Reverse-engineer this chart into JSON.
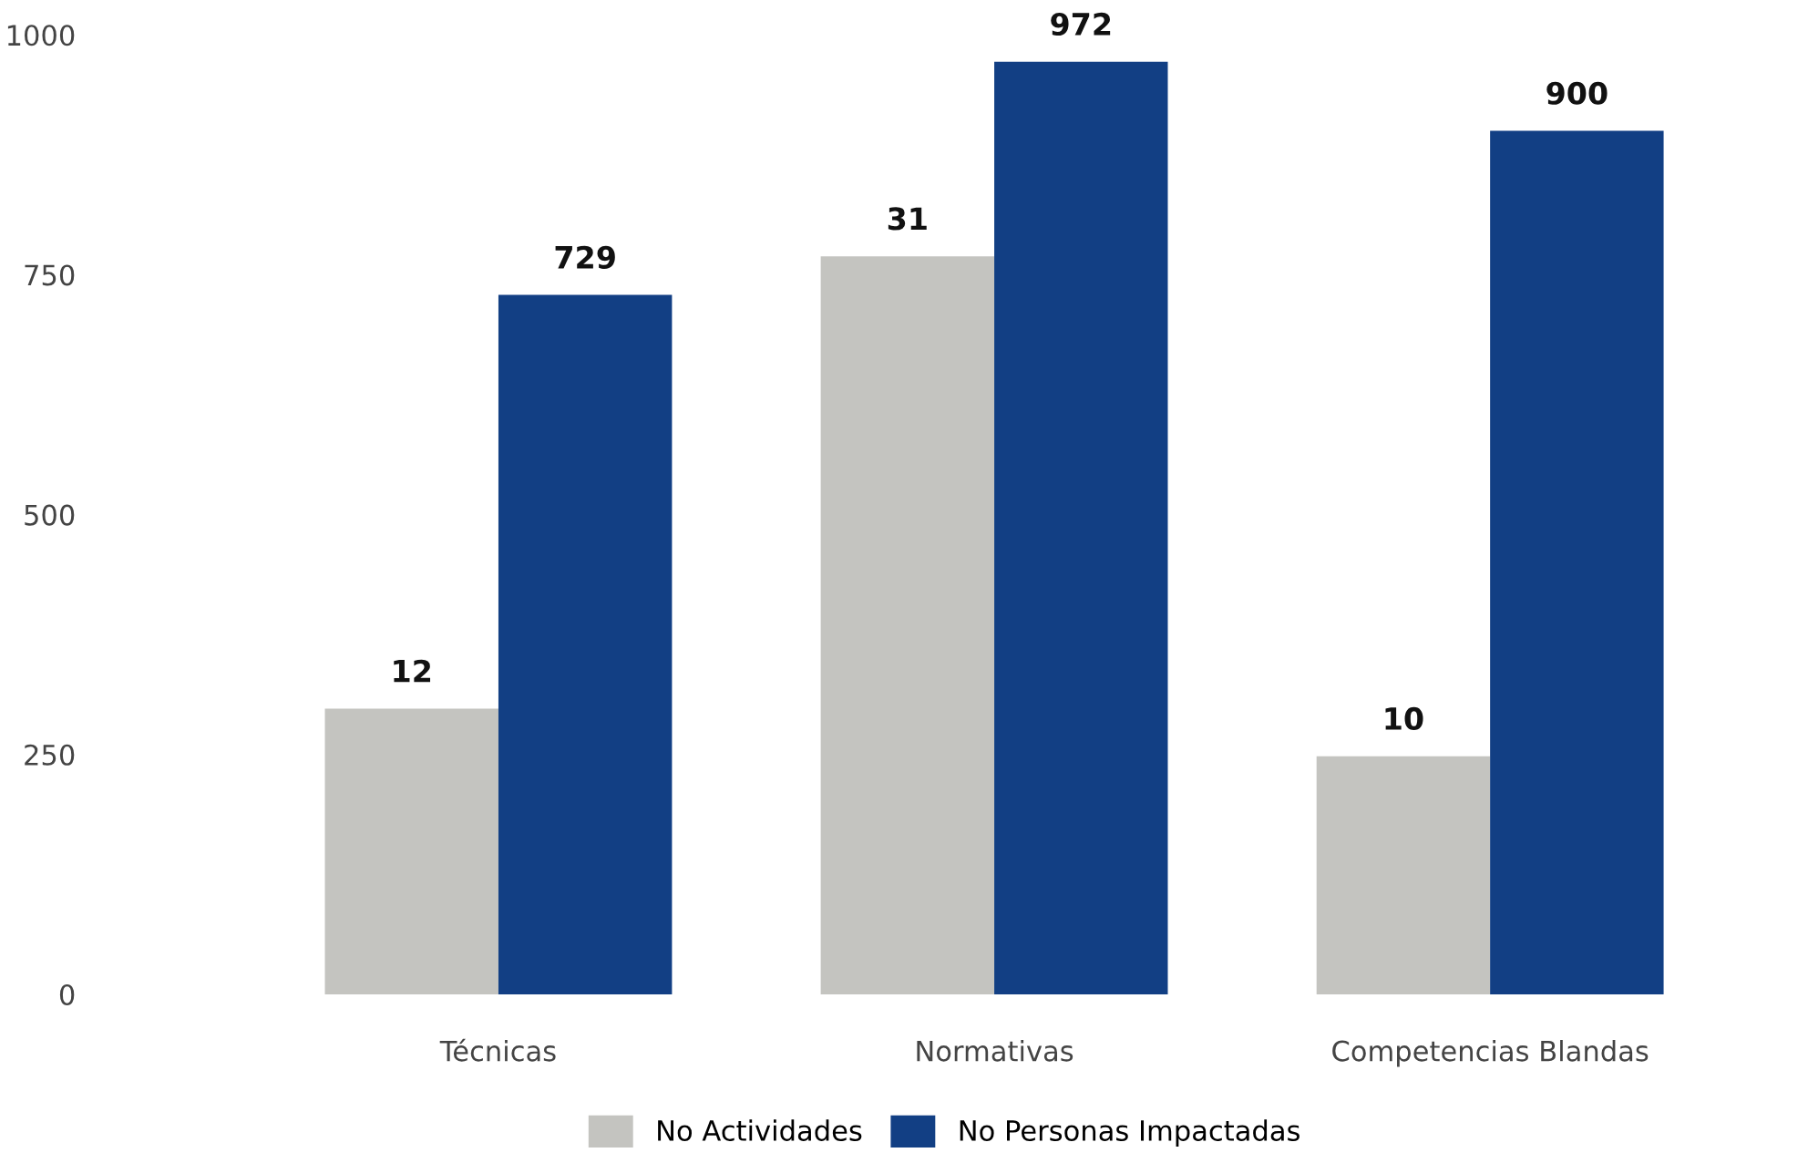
{
  "chart_data": {
    "type": "bar",
    "categories": [
      "Técnicas",
      "Normativas",
      "Competencias Blandas"
    ],
    "series": [
      {
        "name": "No Actividades",
        "color": "#c4c4c0",
        "values": [
          12,
          31,
          10
        ],
        "axis": "y2"
      },
      {
        "name": "No Personas Impactadas",
        "color": "#123f84",
        "values": [
          729,
          972,
          900
        ]
      }
    ],
    "ylim": [
      0,
      1000
    ],
    "yticks": [
      0,
      250,
      500,
      750,
      1000
    ],
    "data_labels": true,
    "grid": false,
    "legend": "bottom"
  }
}
